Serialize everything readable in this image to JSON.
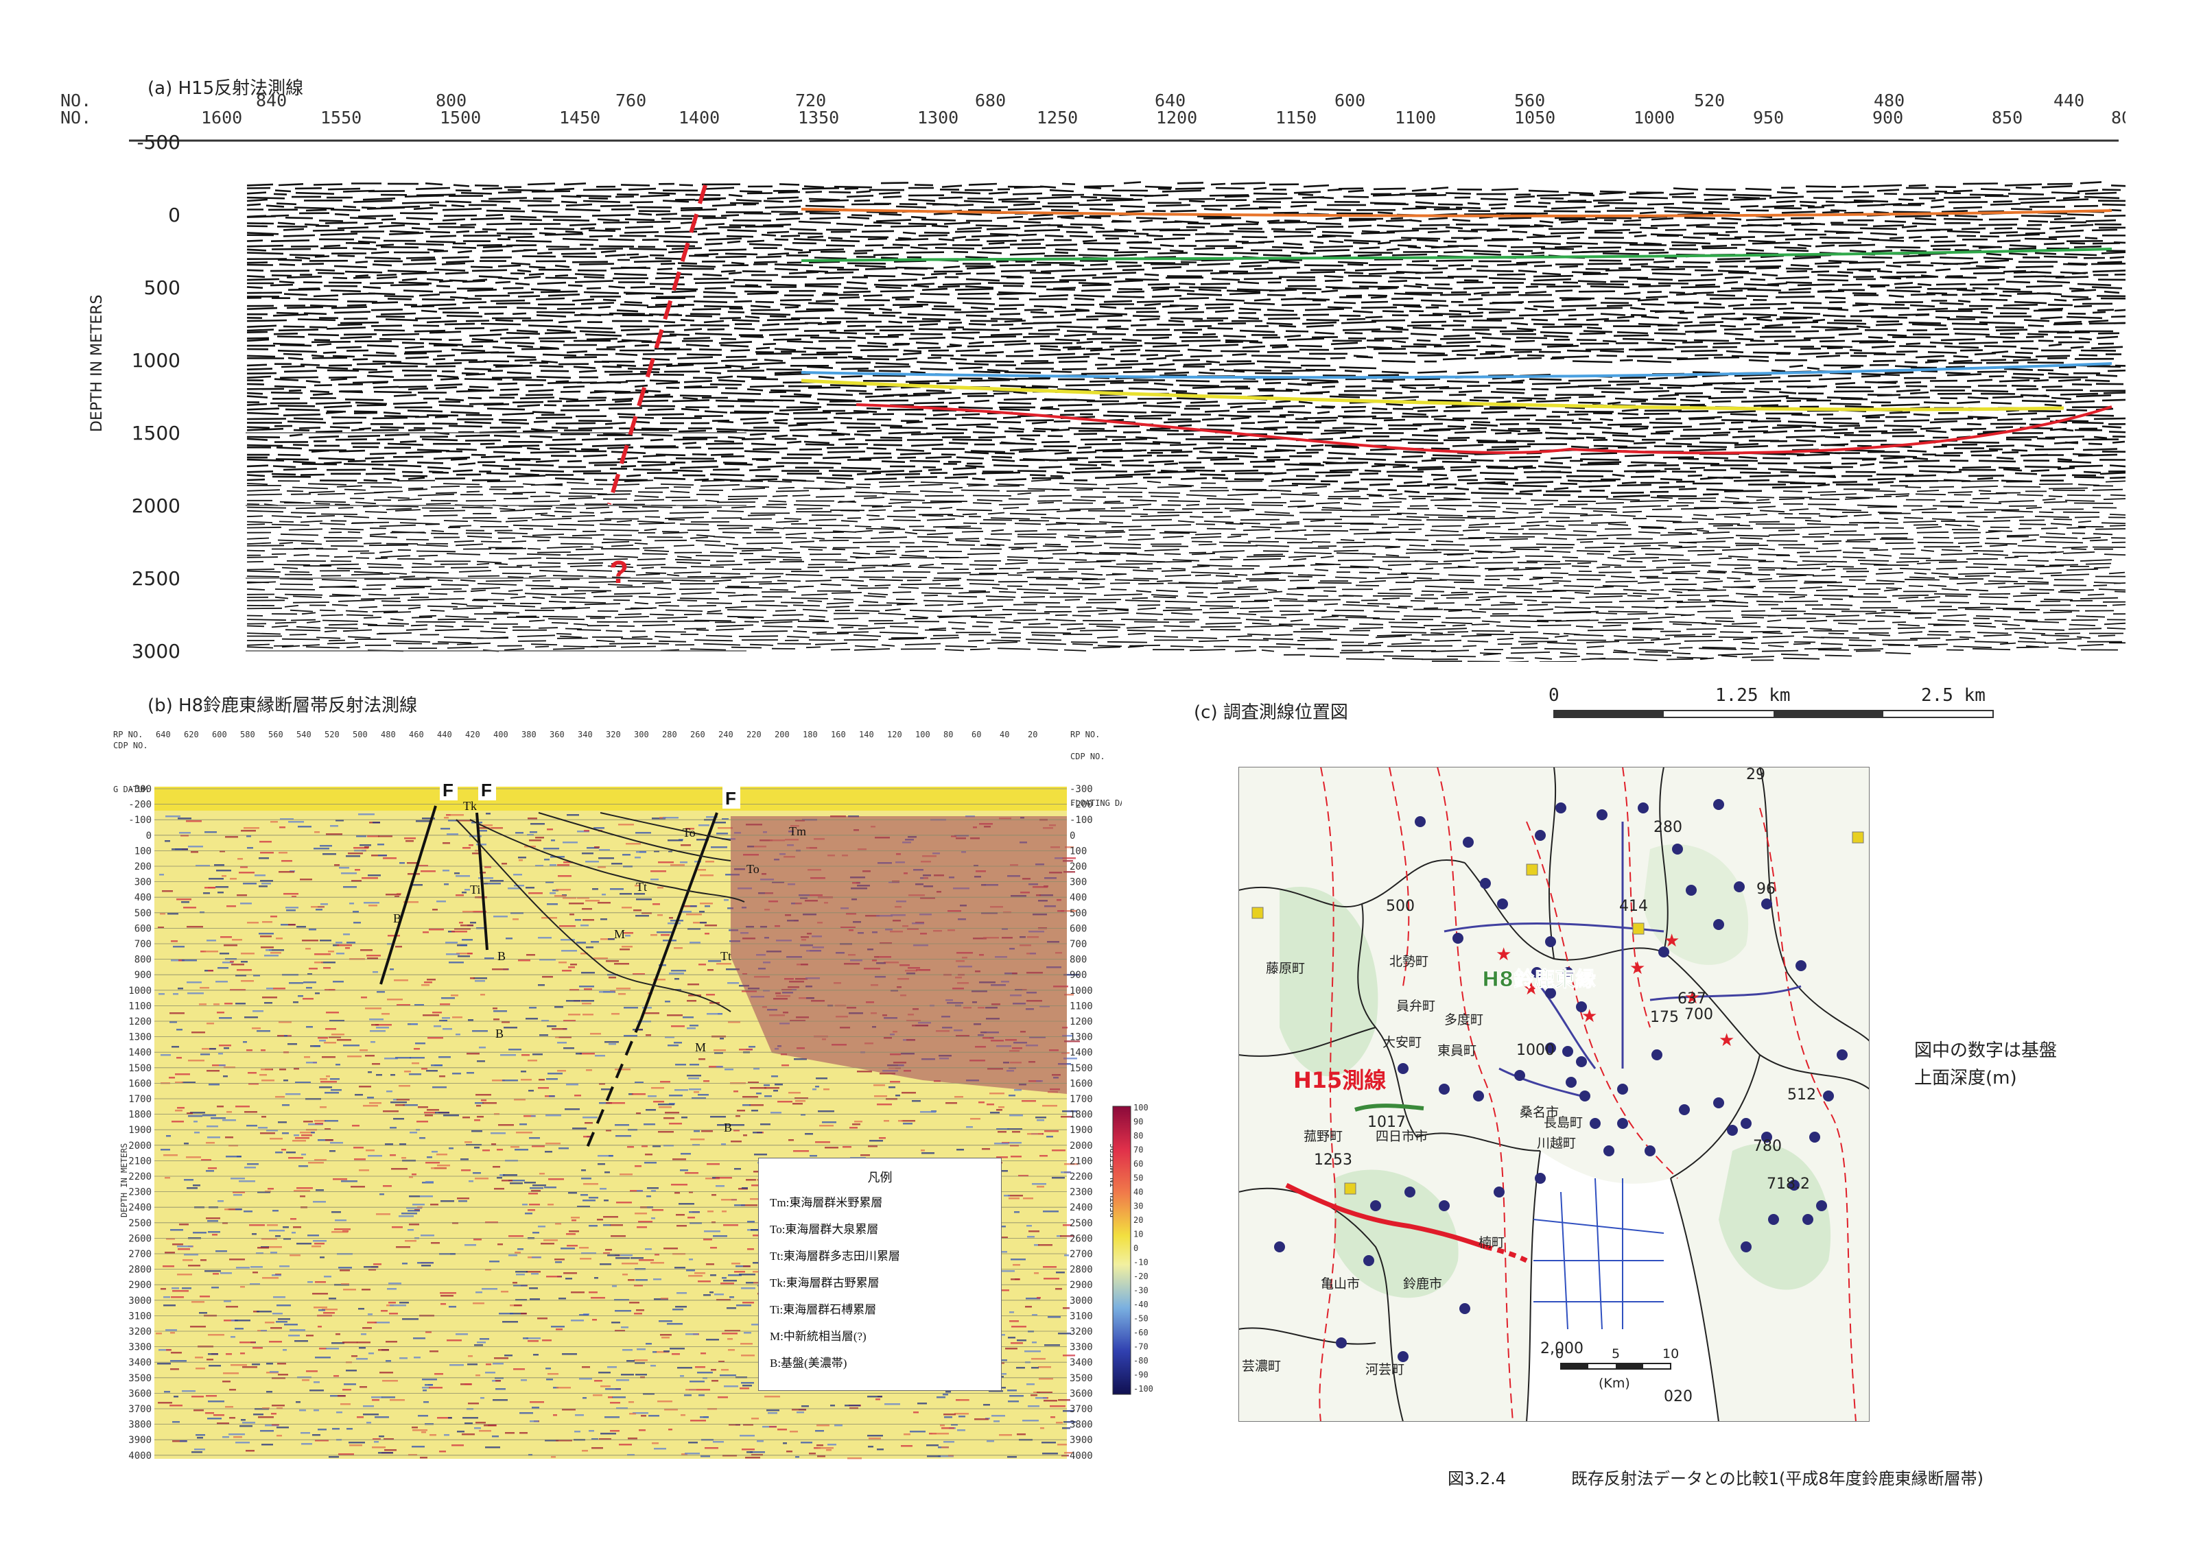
{
  "panel_a": {
    "title": "(a) H15反射法測線",
    "header_rows": [
      "NO.",
      "NO."
    ],
    "top_numbers": [
      "840",
      "800",
      "760",
      "720",
      "680",
      "640",
      "600",
      "560",
      "520",
      "480",
      "440"
    ],
    "cdp_numbers": [
      "1600",
      "1550",
      "1500",
      "1450",
      "1400",
      "1350",
      "1300",
      "1250",
      "1200",
      "1150",
      "1100",
      "1050",
      "1000",
      "950",
      "900",
      "850",
      "800"
    ],
    "depth_labels": [
      "-500",
      "0",
      "500",
      "1000",
      "1500",
      "2000",
      "2500",
      "3000"
    ],
    "depth_axis_title": "DEPTH IN METERS",
    "question_mark": "?"
  },
  "scale": {
    "labels": [
      "0",
      "1.25 km",
      "2.5 km"
    ]
  },
  "panel_b": {
    "title": "(b) H8鈴鹿東縁断層帯反射法測線",
    "rp_label": "RP NO.",
    "cdp_label": "CDP NO.",
    "g_datum": "G DATUM",
    "floating_datum": "FLOATING DATUM",
    "depth_axis_title": "DEPTH IN METERS",
    "top_rp": [
      "640",
      "620",
      "600",
      "580",
      "560",
      "540",
      "520",
      "500",
      "480",
      "460",
      "440",
      "420",
      "400",
      "380",
      "360",
      "340",
      "320",
      "300",
      "280",
      "260",
      "240",
      "220",
      "200",
      "180",
      "160",
      "140",
      "120",
      "100",
      "80",
      "60",
      "40",
      "20"
    ],
    "depth_labels": [
      "-300",
      "-200",
      "-100",
      "0",
      "100",
      "200",
      "300",
      "400",
      "500",
      "600",
      "700",
      "800",
      "900",
      "1000",
      "1100",
      "1200",
      "1300",
      "1400",
      "1500",
      "1600",
      "1700",
      "1800",
      "1900",
      "2000",
      "2100",
      "2200",
      "2300",
      "2400",
      "2500",
      "2600",
      "2700",
      "2800",
      "2900",
      "3000",
      "3100",
      "3200",
      "3300",
      "3400",
      "3500",
      "3600",
      "3700",
      "3800",
      "3900",
      "4000"
    ],
    "fault_labels": [
      "F",
      "F",
      "F"
    ],
    "unit_labels": [
      "Tk",
      "Ti",
      "B",
      "B",
      "B",
      "B",
      "M",
      "M",
      "Tt",
      "Tt",
      "To",
      "To",
      "Tm"
    ],
    "legend": {
      "title": "凡例",
      "items": [
        "Tm:東海層群米野累層",
        "To:東海層群大泉累層",
        "Tt:東海層群多志田川累層",
        "Tk:東海層群古野累層",
        "Ti:東海層群石榑累層",
        "M:中新統相当層(?)",
        "B:基盤(美濃帯)"
      ]
    },
    "colorbar": [
      "100",
      "90",
      "80",
      "70",
      "60",
      "50",
      "40",
      "30",
      "20",
      "10",
      "0",
      "-10",
      "-20",
      "-30",
      "-40",
      "-50",
      "-60",
      "-70",
      "-80",
      "-90",
      "-100"
    ]
  },
  "panel_c": {
    "title": "(c) 調査測線位置図",
    "h8_label": "H8鈴鹿東縁",
    "h15_label": "H15測線",
    "place_names": [
      "藤原町",
      "北勢町",
      "員弁町",
      "大安町",
      "東員町",
      "多度町",
      "菰野町",
      "四日市市",
      "長島町",
      "川越町",
      "桑名市",
      "楠町",
      "亀山市",
      "鈴鹿市",
      "芸濃町",
      "河芸町"
    ],
    "numbers": [
      "29",
      "280",
      "414",
      "96",
      "500",
      "637",
      "700",
      "175",
      "1017",
      "1253",
      "780",
      "718.2",
      "512",
      "2,000",
      "020",
      "1000"
    ],
    "scale_labels": [
      "0",
      "5",
      "10",
      "(Km)"
    ],
    "note": "図中の数字は基盤上面深度(m)"
  },
  "caption": {
    "fig_no": "図3.2.4",
    "text": "既存反射法データとの比較1(平成8年度鈴鹿東縁断層帯)"
  },
  "colors": {
    "fault_red": "#e0202a",
    "orange_horizon": "#e8742a",
    "green_horizon": "#2fa84a",
    "yellow_horizon": "#e8e030",
    "blue_horizon": "#4aa0e0",
    "h8_green": "#3a8a3a",
    "h15_red": "#e01c2a"
  }
}
